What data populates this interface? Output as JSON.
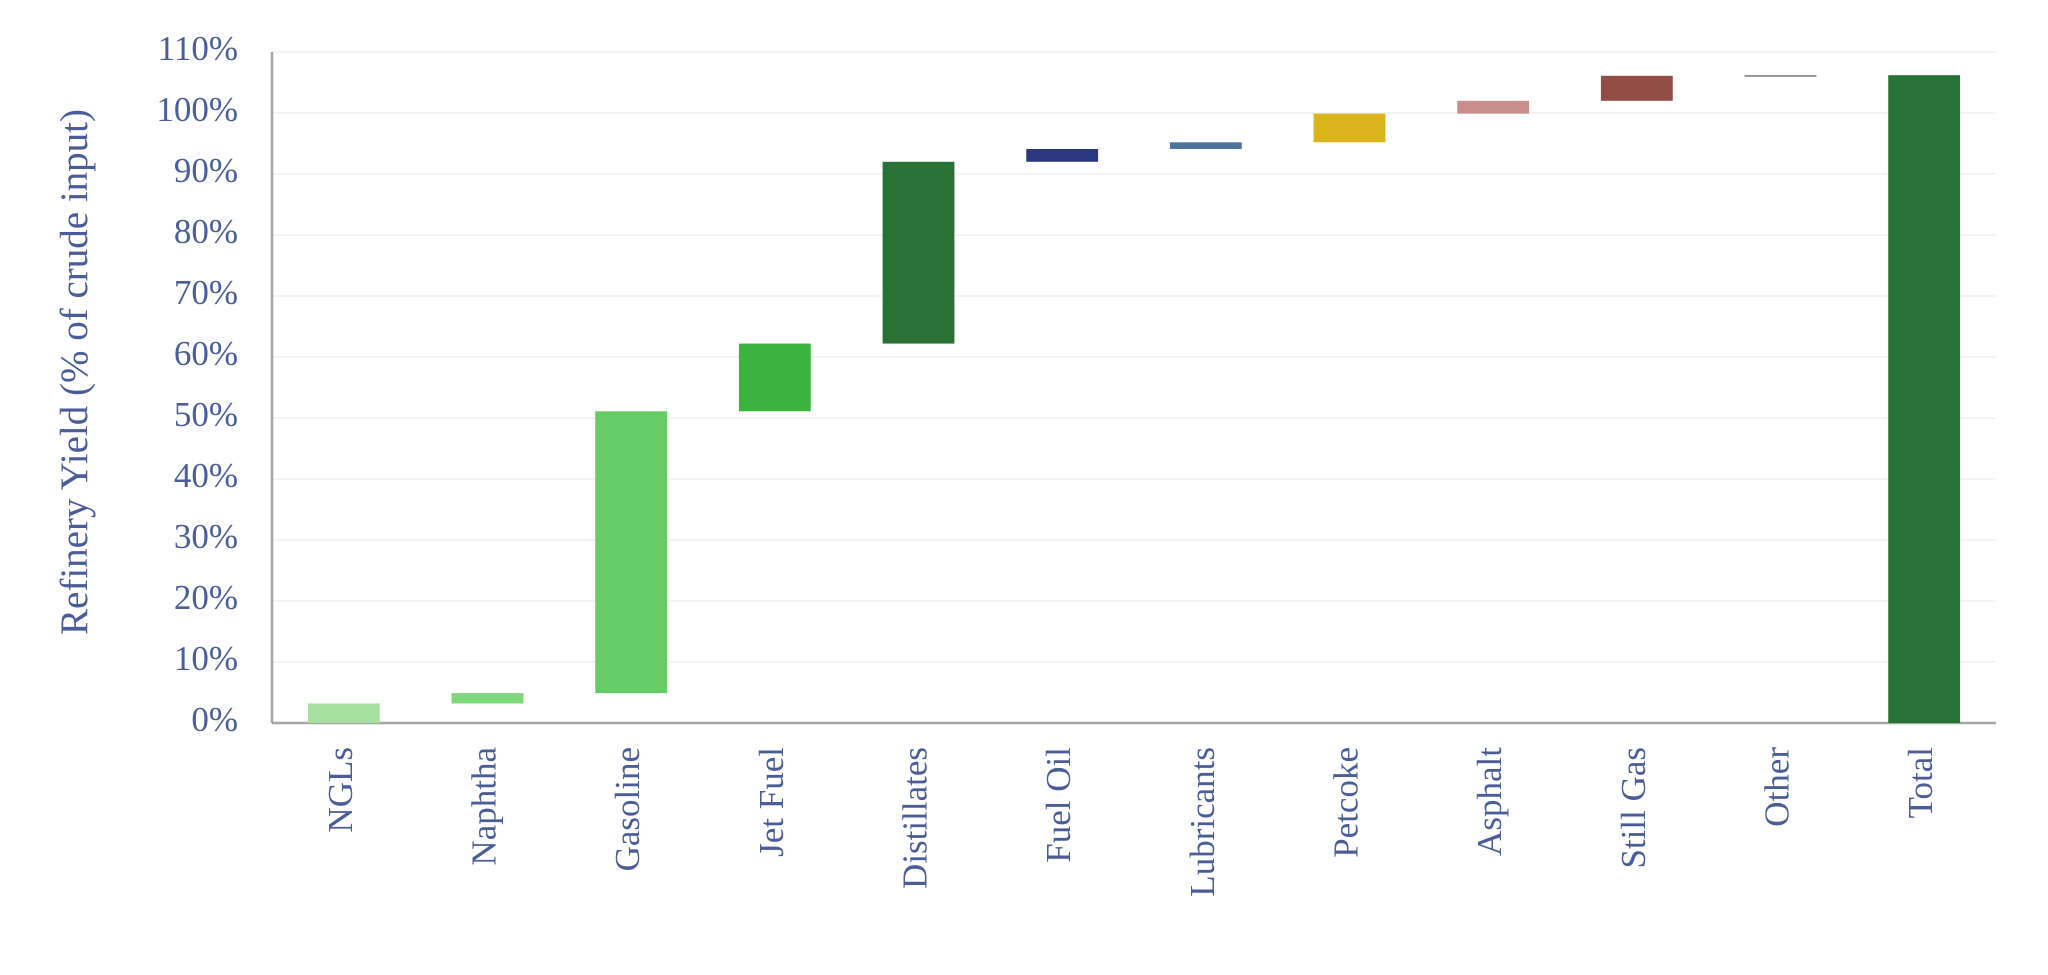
{
  "chart_data": {
    "type": "waterfall",
    "y_label": "Refinery Yield (% of crude input)",
    "categories": [
      "NGLs",
      "Naphtha",
      "Gasoline",
      "Jet Fuel",
      "Distillates",
      "Fuel Oil",
      "Lubricants",
      "Petcoke",
      "Asphalt",
      "Still Gas",
      "Other",
      "Total"
    ],
    "values": [
      3.2,
      1.7,
      46.2,
      11.1,
      29.8,
      2.1,
      1.1,
      4.7,
      2.1,
      4.1,
      0.1,
      106.2
    ],
    "colors": [
      "#a6e0a0",
      "#7dd87a",
      "#66cc66",
      "#3cb33c",
      "#297236",
      "#2b3a80",
      "#4e74a0",
      "#d9b41c",
      "#c98e8a",
      "#924d47",
      "#777777",
      "#297236"
    ],
    "last_is_total": true,
    "ylim": [
      0,
      110
    ],
    "yticks": [
      {
        "value": 0,
        "label": "0%"
      },
      {
        "value": 10,
        "label": "10%"
      },
      {
        "value": 20,
        "label": "20%"
      },
      {
        "value": 30,
        "label": "30%"
      },
      {
        "value": 40,
        "label": "40%"
      },
      {
        "value": 50,
        "label": "50%"
      },
      {
        "value": 60,
        "label": "60%"
      },
      {
        "value": 70,
        "label": "70%"
      },
      {
        "value": 80,
        "label": "80%"
      },
      {
        "value": 90,
        "label": "90%"
      },
      {
        "value": 100,
        "label": "100%"
      },
      {
        "value": 110,
        "label": "110%"
      }
    ],
    "grid": true
  }
}
